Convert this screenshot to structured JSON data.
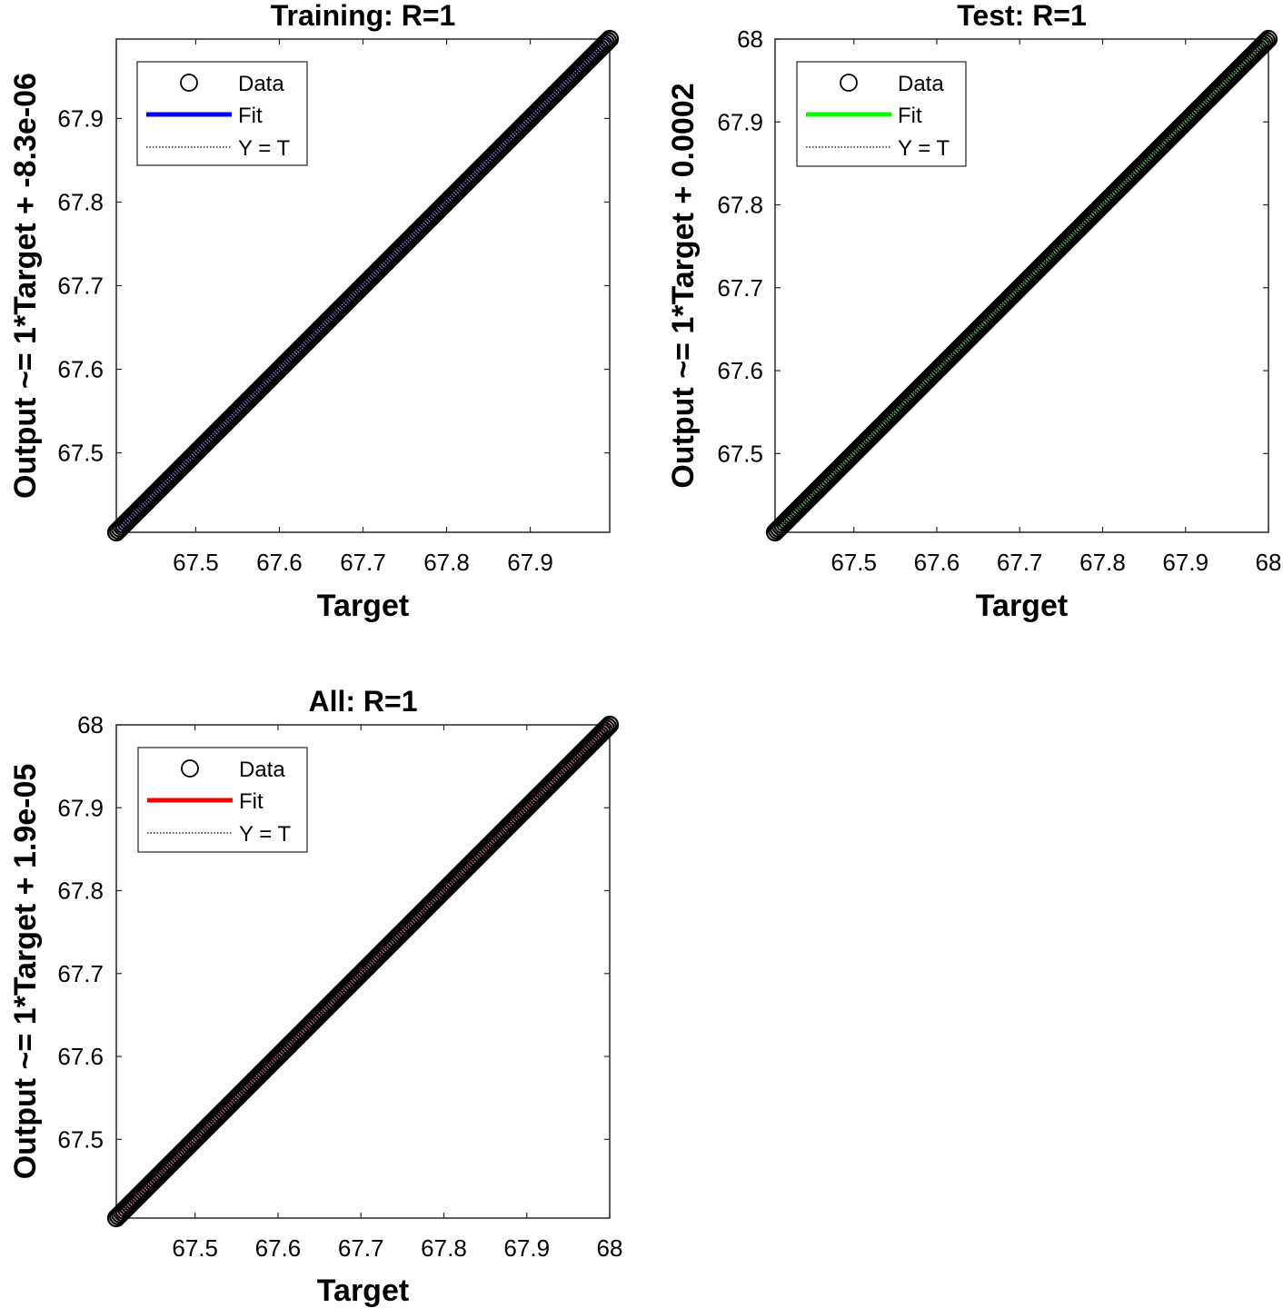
{
  "chart_data": [
    {
      "type": "scatter",
      "title": "Training: R=1",
      "xlabel": "Target",
      "ylabel": "Output ~= 1*Target + -8.3e-06",
      "xlim": [
        67.405,
        67.995
      ],
      "ylim": [
        67.405,
        67.995
      ],
      "xticks": [
        67.5,
        67.6,
        67.7,
        67.8,
        67.9
      ],
      "yticks": [
        67.5,
        67.6,
        67.7,
        67.8,
        67.9
      ],
      "xtick_labels": [
        "67.5",
        "67.6",
        "67.7",
        "67.8",
        "67.9"
      ],
      "ytick_labels": [
        "67.5",
        "67.6",
        "67.7",
        "67.8",
        "67.9"
      ],
      "data_range": [
        67.405,
        67.995
      ],
      "fit": {
        "slope": 1,
        "intercept": -8.3e-06
      },
      "series": [
        {
          "name": "Data",
          "style": "circles",
          "color": "#000000"
        },
        {
          "name": "Fit",
          "style": "line",
          "color": "#0000ff"
        },
        {
          "name": "Y = T",
          "style": "dotted",
          "color": "#000000"
        }
      ],
      "legend": "top-left",
      "grid": false
    },
    {
      "type": "scatter",
      "title": "Test: R=1",
      "xlabel": "Target",
      "ylabel": "Output ~= 1*Target + 0.0002",
      "xlim": [
        67.405,
        68
      ],
      "ylim": [
        67.405,
        68
      ],
      "xticks": [
        67.5,
        67.6,
        67.7,
        67.8,
        67.9,
        68
      ],
      "yticks": [
        67.5,
        67.6,
        67.7,
        67.8,
        67.9,
        68
      ],
      "xtick_labels": [
        "67.5",
        "67.6",
        "67.7",
        "67.8",
        "67.9",
        "68"
      ],
      "ytick_labels": [
        "67.5",
        "67.6",
        "67.7",
        "67.8",
        "67.9",
        "68"
      ],
      "data_range": [
        67.405,
        68
      ],
      "fit": {
        "slope": 1,
        "intercept": 0.0002
      },
      "series": [
        {
          "name": "Data",
          "style": "circles",
          "color": "#000000"
        },
        {
          "name": "Fit",
          "style": "line",
          "color": "#00ff00"
        },
        {
          "name": "Y = T",
          "style": "dotted",
          "color": "#000000"
        }
      ],
      "legend": "top-left",
      "grid": false
    },
    {
      "type": "scatter",
      "title": "All: R=1",
      "xlabel": "Target",
      "ylabel": "Output ~= 1*Target + 1.9e-05",
      "xlim": [
        67.405,
        68
      ],
      "ylim": [
        67.405,
        68
      ],
      "xticks": [
        67.5,
        67.6,
        67.7,
        67.8,
        67.9,
        68
      ],
      "yticks": [
        67.5,
        67.6,
        67.7,
        67.8,
        67.9,
        68
      ],
      "xtick_labels": [
        "67.5",
        "67.6",
        "67.7",
        "67.8",
        "67.9",
        "68"
      ],
      "ytick_labels": [
        "67.5",
        "67.6",
        "67.7",
        "67.8",
        "67.9",
        "68"
      ],
      "data_range": [
        67.405,
        68
      ],
      "fit": {
        "slope": 1,
        "intercept": 1.9e-05
      },
      "series": [
        {
          "name": "Data",
          "style": "circles",
          "color": "#000000"
        },
        {
          "name": "Fit",
          "style": "line",
          "color": "#ff0000"
        },
        {
          "name": "Y = T",
          "style": "dotted",
          "color": "#000000"
        }
      ],
      "legend": "top-left",
      "grid": false
    }
  ]
}
